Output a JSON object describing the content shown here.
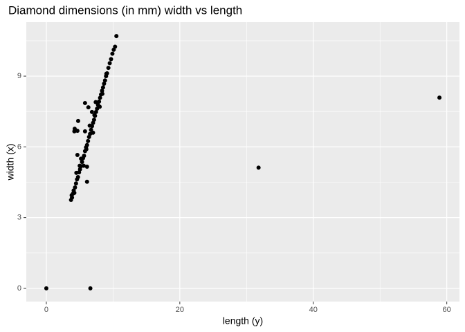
{
  "chart_data": {
    "type": "scatter",
    "title": "Diamond dimensions (in mm) width vs length",
    "x_label": "length (y)",
    "y_label": "width (x)",
    "xlim": [
      -3.0,
      61.9
    ],
    "ylim": [
      -0.56,
      11.29
    ],
    "xticks": [
      0,
      20,
      40,
      60
    ],
    "yticks": [
      0,
      3,
      6,
      9
    ],
    "x_minor_ticks": [
      10,
      30,
      50
    ],
    "y_minor_ticks": [
      1.5,
      4.5,
      7.5,
      10.5
    ],
    "grid": true,
    "color": "#000000",
    "x": [
      0,
      6.6,
      31.8,
      58.9,
      5.8,
      4.25,
      4.66,
      4.2,
      4.77,
      4.66,
      6.1,
      6.1,
      6.84,
      6.3,
      5.8,
      3.7,
      3.85,
      4.0,
      4.1,
      4.3,
      4.45,
      4.6,
      4.75,
      4.9,
      5.05,
      5.2,
      5.35,
      5.5,
      5.65,
      5.8,
      5.95,
      6.1,
      6.25,
      6.4,
      6.55,
      6.7,
      6.85,
      7.0,
      7.15,
      7.3,
      7.45,
      7.6,
      7.75,
      7.9,
      8.05,
      8.2,
      8.35,
      8.5,
      8.65,
      8.8,
      8.95,
      9.1,
      9.3,
      9.5,
      9.7,
      9.9,
      10.1,
      10.3,
      10.5,
      5.2,
      5.6,
      6.5,
      7.0,
      4.5,
      8.0,
      7.4,
      3.8,
      4.2,
      5.0,
      6.0,
      7.2,
      8.4,
      9.0
    ],
    "values": [
      0,
      0,
      5.12,
      8.09,
      7.86,
      6.77,
      6.68,
      6.66,
      7.1,
      5.66,
      5.16,
      4.52,
      7.48,
      7.68,
      6.66,
      3.75,
      3.85,
      4.02,
      4.15,
      4.28,
      4.45,
      4.62,
      4.72,
      4.92,
      5.05,
      5.18,
      5.36,
      5.52,
      5.62,
      5.82,
      5.98,
      6.08,
      6.25,
      6.42,
      6.55,
      6.72,
      6.88,
      7.02,
      7.15,
      7.32,
      7.48,
      7.62,
      7.78,
      7.92,
      8.08,
      8.22,
      8.38,
      8.52,
      8.68,
      8.82,
      9.0,
      9.12,
      9.35,
      9.55,
      9.72,
      9.95,
      10.12,
      10.25,
      10.7,
      5.5,
      5.2,
      6.9,
      6.6,
      4.9,
      7.7,
      7.9,
      3.95,
      4.05,
      5.2,
      5.9,
      7.35,
      8.25,
      9.1
    ]
  }
}
